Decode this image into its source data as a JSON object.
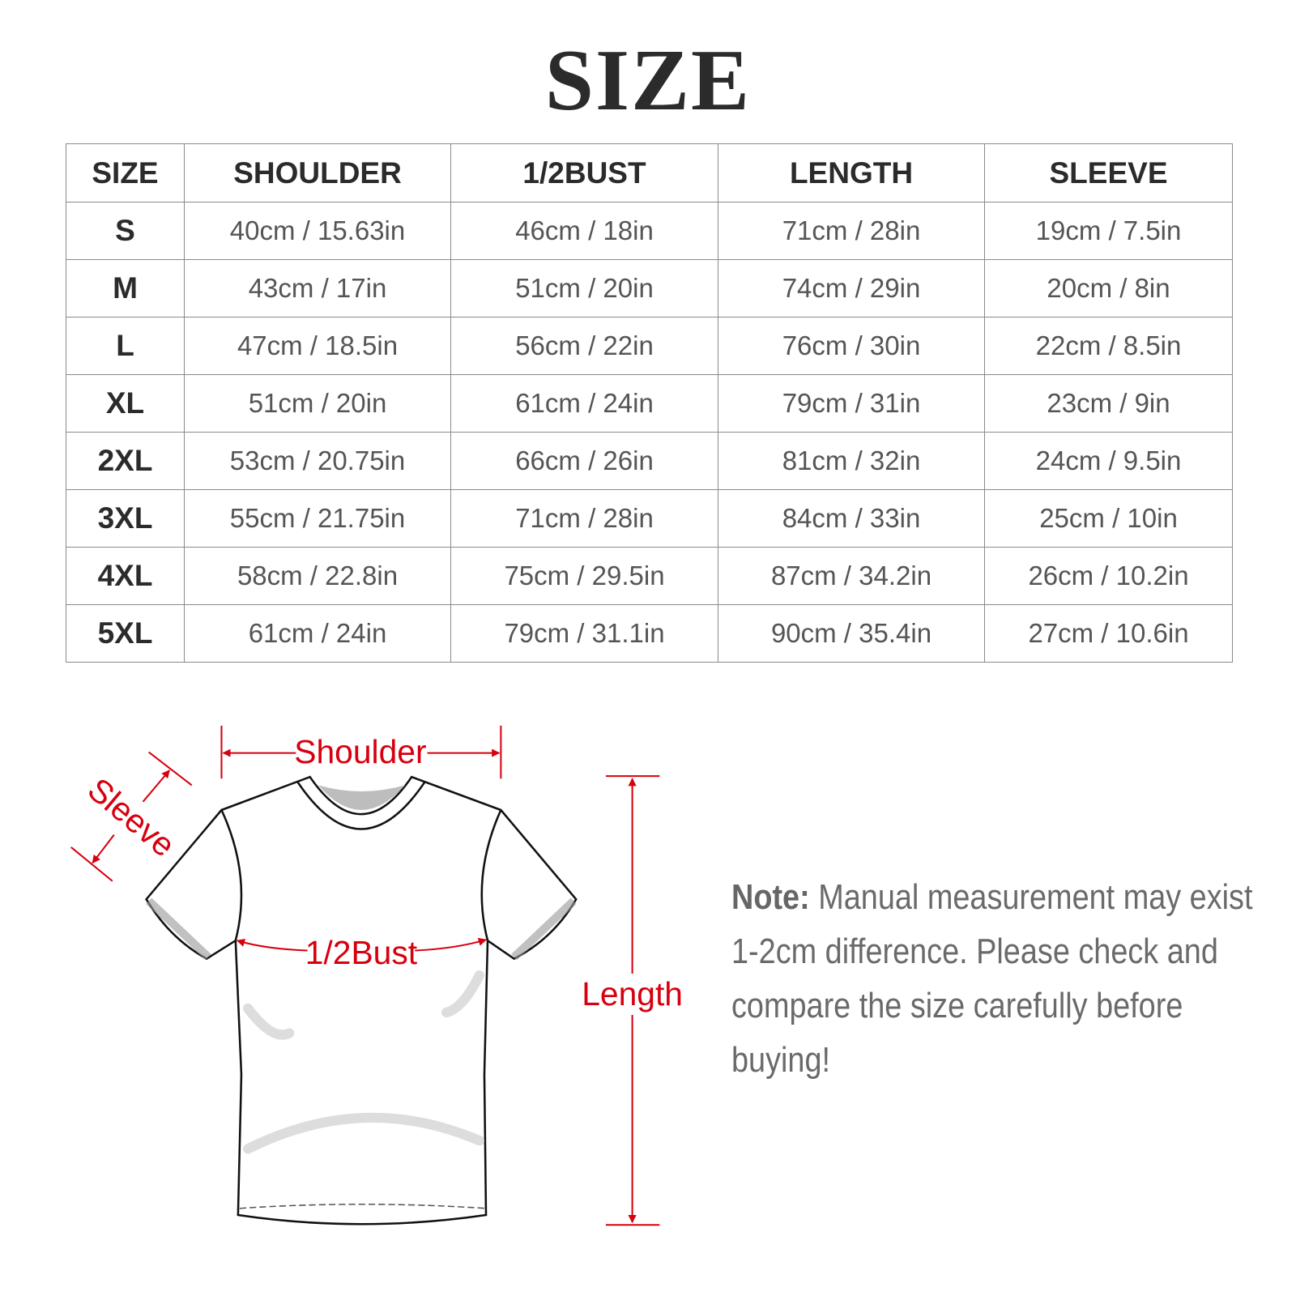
{
  "title": "SIZE",
  "table": {
    "headers": [
      "SIZE",
      "SHOULDER",
      "1/2BUST",
      "LENGTH",
      "SLEEVE"
    ],
    "rows": [
      [
        "S",
        "40cm / 15.63in",
        "46cm / 18in",
        "71cm / 28in",
        "19cm / 7.5in"
      ],
      [
        "M",
        "43cm / 17in",
        "51cm / 20in",
        "74cm / 29in",
        "20cm / 8in"
      ],
      [
        "L",
        "47cm / 18.5in",
        "56cm / 22in",
        "76cm / 30in",
        "22cm / 8.5in"
      ],
      [
        "XL",
        "51cm / 20in",
        "61cm / 24in",
        "79cm / 31in",
        "23cm / 9in"
      ],
      [
        "2XL",
        "53cm / 20.75in",
        "66cm / 26in",
        "81cm / 32in",
        "24cm / 9.5in"
      ],
      [
        "3XL",
        "55cm / 21.75in",
        "71cm / 28in",
        "84cm / 33in",
        "25cm / 10in"
      ],
      [
        "4XL",
        "58cm / 22.8in",
        "75cm / 29.5in",
        "87cm / 34.2in",
        "26cm / 10.2in"
      ],
      [
        "5XL",
        "61cm / 24in",
        "79cm / 31.1in",
        "90cm / 35.4in",
        "27cm / 10.6in"
      ]
    ]
  },
  "diagram": {
    "shoulder": "Shoulder",
    "sleeve": "Sleeve",
    "bust": "1/2Bust",
    "length": "Length",
    "annotation_color": "#d7000f"
  },
  "note": {
    "label": "Note:",
    "text": " Manual measurement may exist 1-2cm difference. Please check and compare the size carefully before buying!"
  }
}
